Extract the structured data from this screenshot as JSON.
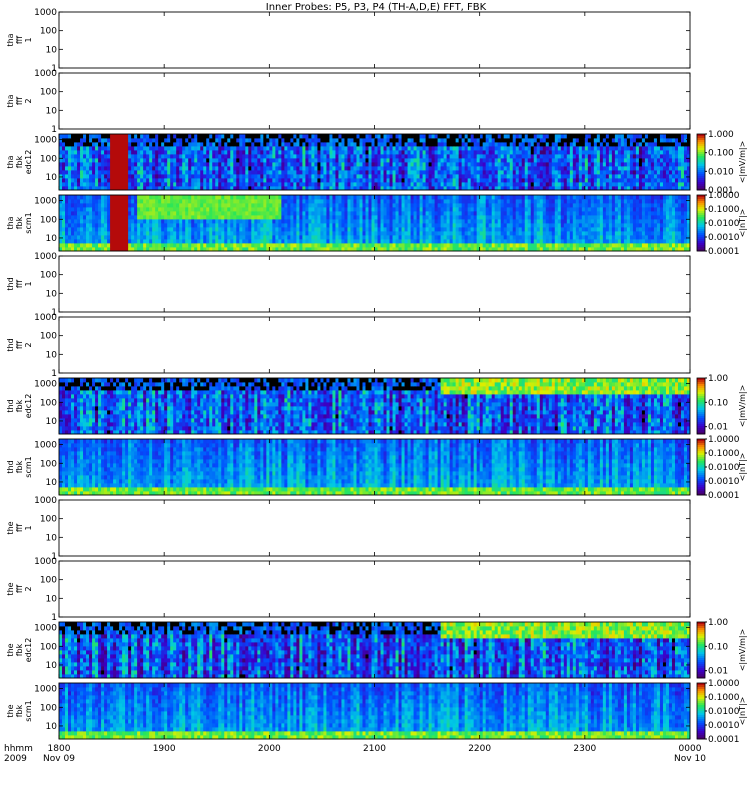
{
  "title": "Inner Probes: P5, P3, P4 (TH-A,D,E) FFT, FBK",
  "x_axis": {
    "tick_labels": [
      "1800",
      "1900",
      "2000",
      "2100",
      "2200",
      "2300",
      "0000"
    ],
    "date_labels": [
      "Nov 09",
      "",
      "",
      "",
      "",
      "",
      "Nov 10"
    ],
    "corner_labels": [
      "hhmm",
      "2009"
    ]
  },
  "chart_data": [
    {
      "type": "heatmap",
      "panel_label": [
        "tha",
        "fff",
        "1"
      ],
      "ylim": [
        1,
        1000
      ],
      "y_scale": "log",
      "y_ticks": [
        "1000",
        "100",
        "10",
        "1"
      ],
      "empty": true
    },
    {
      "type": "heatmap",
      "panel_label": [
        "tha",
        "fff",
        "2"
      ],
      "ylim": [
        1,
        1000
      ],
      "y_scale": "log",
      "y_ticks": [
        "1000",
        "100",
        "10",
        "1"
      ],
      "empty": true
    },
    {
      "type": "heatmap",
      "panel_label": [
        "tha",
        "fbk",
        "edc12"
      ],
      "ylim": [
        2,
        2000
      ],
      "y_scale": "log",
      "y_ticks": [
        "1000",
        "100",
        "10"
      ],
      "colorbar": {
        "label": "<|mV/m|>",
        "ticks": [
          "1.000",
          "0.100",
          "0.010",
          "0.001"
        ],
        "range": [
          0.001,
          1
        ]
      },
      "empty": false
    },
    {
      "type": "heatmap",
      "panel_label": [
        "tha",
        "fbk",
        "scm1"
      ],
      "ylim": [
        2,
        2000
      ],
      "y_scale": "log",
      "y_ticks": [
        "1000",
        "100",
        "10"
      ],
      "colorbar": {
        "label": "<|nT|>",
        "ticks": [
          "1.0000",
          "0.1000",
          "0.0100",
          "0.0010",
          "0.0001"
        ],
        "range": [
          0.0001,
          1
        ]
      },
      "empty": false
    },
    {
      "type": "heatmap",
      "panel_label": [
        "thd",
        "fff",
        "1"
      ],
      "ylim": [
        1,
        1000
      ],
      "y_scale": "log",
      "y_ticks": [
        "1000",
        "100",
        "10",
        "1"
      ],
      "empty": true
    },
    {
      "type": "heatmap",
      "panel_label": [
        "thd",
        "fff",
        "2"
      ],
      "ylim": [
        1,
        1000
      ],
      "y_scale": "log",
      "y_ticks": [
        "1000",
        "100",
        "10",
        "1"
      ],
      "empty": true
    },
    {
      "type": "heatmap",
      "panel_label": [
        "thd",
        "fbk",
        "edc12"
      ],
      "ylim": [
        2,
        2000
      ],
      "y_scale": "log",
      "y_ticks": [
        "1000",
        "100",
        "10"
      ],
      "colorbar": {
        "label": "<|mV/m|>",
        "ticks": [
          "1.00",
          "0.10",
          "0.01"
        ],
        "range": [
          0.005,
          1
        ]
      },
      "empty": false
    },
    {
      "type": "heatmap",
      "panel_label": [
        "thd",
        "fbk",
        "scm1"
      ],
      "ylim": [
        2,
        2000
      ],
      "y_scale": "log",
      "y_ticks": [
        "1000",
        "100",
        "10"
      ],
      "colorbar": {
        "label": "<|nT|>",
        "ticks": [
          "1.0000",
          "0.1000",
          "0.0100",
          "0.0010",
          "0.0001"
        ],
        "range": [
          0.0001,
          1
        ]
      },
      "empty": false
    },
    {
      "type": "heatmap",
      "panel_label": [
        "the",
        "fff",
        "1"
      ],
      "ylim": [
        1,
        1000
      ],
      "y_scale": "log",
      "y_ticks": [
        "1000",
        "100",
        "10",
        "1"
      ],
      "empty": true
    },
    {
      "type": "heatmap",
      "panel_label": [
        "the",
        "fff",
        "2"
      ],
      "ylim": [
        1,
        1000
      ],
      "y_scale": "log",
      "y_ticks": [
        "1000",
        "100",
        "10",
        "1"
      ],
      "empty": true
    },
    {
      "type": "heatmap",
      "panel_label": [
        "the",
        "fbk",
        "edc12"
      ],
      "ylim": [
        2,
        2000
      ],
      "y_scale": "log",
      "y_ticks": [
        "1000",
        "100",
        "10"
      ],
      "colorbar": {
        "label": "<|mV/m|>",
        "ticks": [
          "1.00",
          "0.10",
          "0.01"
        ],
        "range": [
          0.005,
          1
        ]
      },
      "empty": false
    },
    {
      "type": "heatmap",
      "panel_label": [
        "the",
        "fbk",
        "scm1"
      ],
      "ylim": [
        2,
        2000
      ],
      "y_scale": "log",
      "y_ticks": [
        "1000",
        "100",
        "10"
      ],
      "colorbar": {
        "label": "<|nT|>",
        "ticks": [
          "1.0000",
          "0.1000",
          "0.0100",
          "0.0010",
          "0.0001"
        ],
        "range": [
          0.0001,
          1
        ]
      },
      "empty": false
    }
  ]
}
